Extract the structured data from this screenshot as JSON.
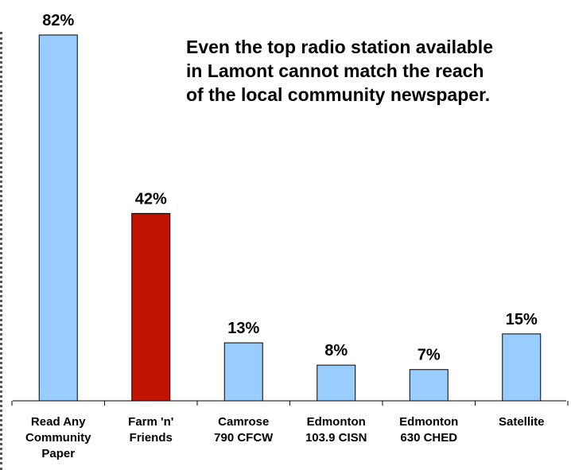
{
  "headline": [
    "Even the top radio station available",
    "in Lamont cannot match the reach",
    "of the local community newspaper."
  ],
  "colors": {
    "default_bar": "#99ccff",
    "highlight_bar": "#c01400",
    "axis": "#000000"
  },
  "chart_data": {
    "type": "bar",
    "categories": [
      [
        "Read Any",
        "Community",
        "Paper"
      ],
      [
        "Farm 'n'",
        "Friends"
      ],
      [
        "Camrose",
        "790 CFCW"
      ],
      [
        "Edmonton",
        "103.9 CISN"
      ],
      [
        "Edmonton",
        "630 CHED"
      ],
      [
        "Satellite"
      ]
    ],
    "values": [
      82,
      42,
      13,
      8,
      7,
      15
    ],
    "data_labels": [
      "82%",
      "42%",
      "13%",
      "8%",
      "7%",
      "15%"
    ],
    "highlight_index": 1,
    "ylim": [
      0,
      90
    ],
    "grid": false,
    "legend": "none"
  }
}
